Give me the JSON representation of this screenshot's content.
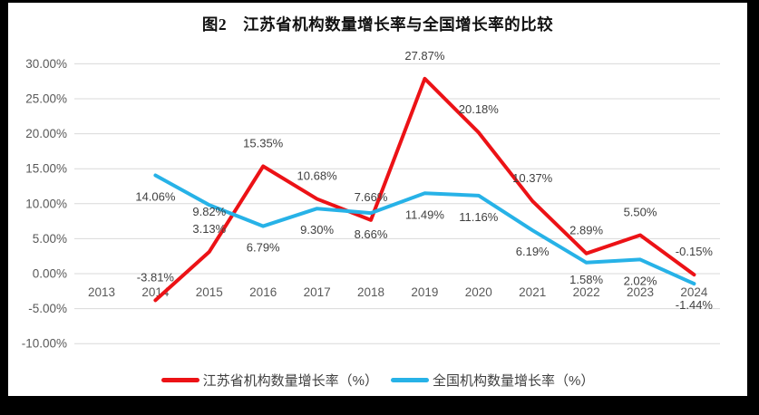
{
  "chart_data": {
    "type": "line",
    "title": "图2　江苏省机构数量增长率与全国增长率的比较",
    "categories": [
      "2013",
      "2014",
      "2015",
      "2016",
      "2017",
      "2018",
      "2019",
      "2020",
      "2021",
      "2022",
      "2023",
      "2024"
    ],
    "series": [
      {
        "name": "江苏省机构数量增长率（%）",
        "color": "#ec1216",
        "values": [
          null,
          -3.81,
          3.13,
          15.35,
          10.68,
          7.66,
          27.87,
          20.18,
          10.37,
          2.89,
          5.5,
          -0.15
        ],
        "labels": [
          "",
          "-3.81%",
          "3.13%",
          "15.35%",
          "10.68%",
          "7.66%",
          "27.87%",
          "20.18%",
          "10.37%",
          "2.89%",
          "5.50%",
          "-0.15%"
        ]
      },
      {
        "name": "全国机构数量增长率（%）",
        "color": "#27b2e7",
        "values": [
          null,
          14.06,
          9.82,
          6.79,
          9.3,
          8.66,
          11.49,
          11.16,
          6.19,
          1.58,
          2.02,
          -1.44
        ],
        "labels": [
          "",
          "14.06%",
          "9.82%",
          "6.79%",
          "9.30%",
          "8.66%",
          "11.49%",
          "11.16%",
          "6.19%",
          "1.58%",
          "2.02%",
          "-1.44%"
        ]
      }
    ],
    "y_tick_values": [
      30,
      25,
      20,
      15,
      10,
      5,
      0,
      -5,
      -10
    ],
    "y_tick_labels": [
      "30.00%",
      "25.00%",
      "20.00%",
      "15.00%",
      "10.00%",
      "5.00%",
      "0.00%",
      "-5.00%",
      "-10.00%"
    ],
    "ylim": [
      -10,
      30
    ],
    "grid": true,
    "data_labels": true,
    "legend_position": "bottom"
  },
  "colors": {
    "grid": "#d9d9d9",
    "axis_text": "#595959",
    "data_label_text": "#3f3f3f",
    "frame": "#000000",
    "background": "#ffffff"
  }
}
